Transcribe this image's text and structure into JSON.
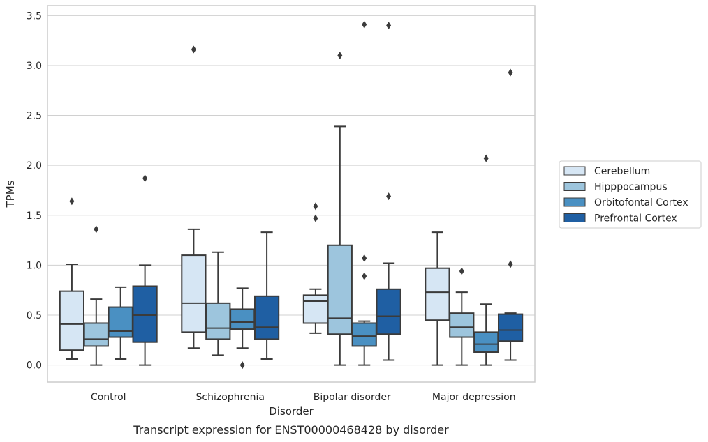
{
  "chart_data": {
    "type": "box",
    "title": "",
    "caption": "Transcript expression for ENST00000468428 by disorder",
    "xlabel": "Disorder",
    "ylabel": "TPMs",
    "ylim": [
      -0.17,
      3.6
    ],
    "yticks": [
      "0.0",
      "0.5",
      "1.0",
      "1.5",
      "2.0",
      "2.5",
      "3.0",
      "3.5"
    ],
    "grid": "horizontal",
    "legend_position": "right",
    "categories": [
      "Control",
      "Schizophrenia",
      "Bipolar disorder",
      "Major depression"
    ],
    "series": [
      {
        "name": "Cerebellum",
        "color": "#d6e6f4",
        "boxes": [
          {
            "whisker_low": 0.06,
            "q1": 0.15,
            "median": 0.41,
            "q3": 0.74,
            "whisker_high": 1.01,
            "outliers": [
              1.64
            ]
          },
          {
            "whisker_low": 0.17,
            "q1": 0.33,
            "median": 0.62,
            "q3": 1.1,
            "whisker_high": 1.36,
            "outliers": [
              3.16
            ]
          },
          {
            "whisker_low": 0.32,
            "q1": 0.42,
            "median": 0.64,
            "q3": 0.7,
            "whisker_high": 0.76,
            "outliers": [
              1.47,
              1.59
            ]
          },
          {
            "whisker_low": 0.0,
            "q1": 0.45,
            "median": 0.73,
            "q3": 0.97,
            "whisker_high": 1.33,
            "outliers": []
          }
        ]
      },
      {
        "name": "Hipppocampus",
        "color": "#9dc5dd",
        "boxes": [
          {
            "whisker_low": 0.0,
            "q1": 0.19,
            "median": 0.26,
            "q3": 0.42,
            "whisker_high": 0.66,
            "outliers": [
              1.36
            ]
          },
          {
            "whisker_low": 0.1,
            "q1": 0.26,
            "median": 0.37,
            "q3": 0.62,
            "whisker_high": 1.13,
            "outliers": []
          },
          {
            "whisker_low": 0.0,
            "q1": 0.31,
            "median": 0.47,
            "q3": 1.2,
            "whisker_high": 2.39,
            "outliers": [
              3.1
            ]
          },
          {
            "whisker_low": 0.0,
            "q1": 0.28,
            "median": 0.38,
            "q3": 0.52,
            "whisker_high": 0.73,
            "outliers": [
              0.94
            ]
          }
        ]
      },
      {
        "name": "Orbitofontal Cortex",
        "color": "#4a90c2",
        "boxes": [
          {
            "whisker_low": 0.06,
            "q1": 0.28,
            "median": 0.34,
            "q3": 0.58,
            "whisker_high": 0.78,
            "outliers": []
          },
          {
            "whisker_low": 0.17,
            "q1": 0.36,
            "median": 0.43,
            "q3": 0.56,
            "whisker_high": 0.77,
            "outliers": [
              0.0
            ]
          },
          {
            "whisker_low": 0.0,
            "q1": 0.19,
            "median": 0.29,
            "q3": 0.42,
            "whisker_high": 0.44,
            "outliers": [
              0.89,
              1.07,
              3.41
            ]
          },
          {
            "whisker_low": 0.0,
            "q1": 0.13,
            "median": 0.21,
            "q3": 0.33,
            "whisker_high": 0.61,
            "outliers": [
              2.07
            ]
          }
        ]
      },
      {
        "name": "Prefrontal Cortex",
        "color": "#1f5fa3",
        "boxes": [
          {
            "whisker_low": 0.0,
            "q1": 0.23,
            "median": 0.5,
            "q3": 0.79,
            "whisker_high": 1.0,
            "outliers": [
              1.87
            ]
          },
          {
            "whisker_low": 0.06,
            "q1": 0.26,
            "median": 0.38,
            "q3": 0.69,
            "whisker_high": 1.33,
            "outliers": []
          },
          {
            "whisker_low": 0.05,
            "q1": 0.31,
            "median": 0.49,
            "q3": 0.76,
            "whisker_high": 1.02,
            "outliers": [
              1.69,
              3.4
            ]
          },
          {
            "whisker_low": 0.05,
            "q1": 0.24,
            "median": 0.35,
            "q3": 0.51,
            "whisker_high": 0.52,
            "outliers": [
              1.01,
              2.93
            ]
          }
        ]
      }
    ]
  }
}
